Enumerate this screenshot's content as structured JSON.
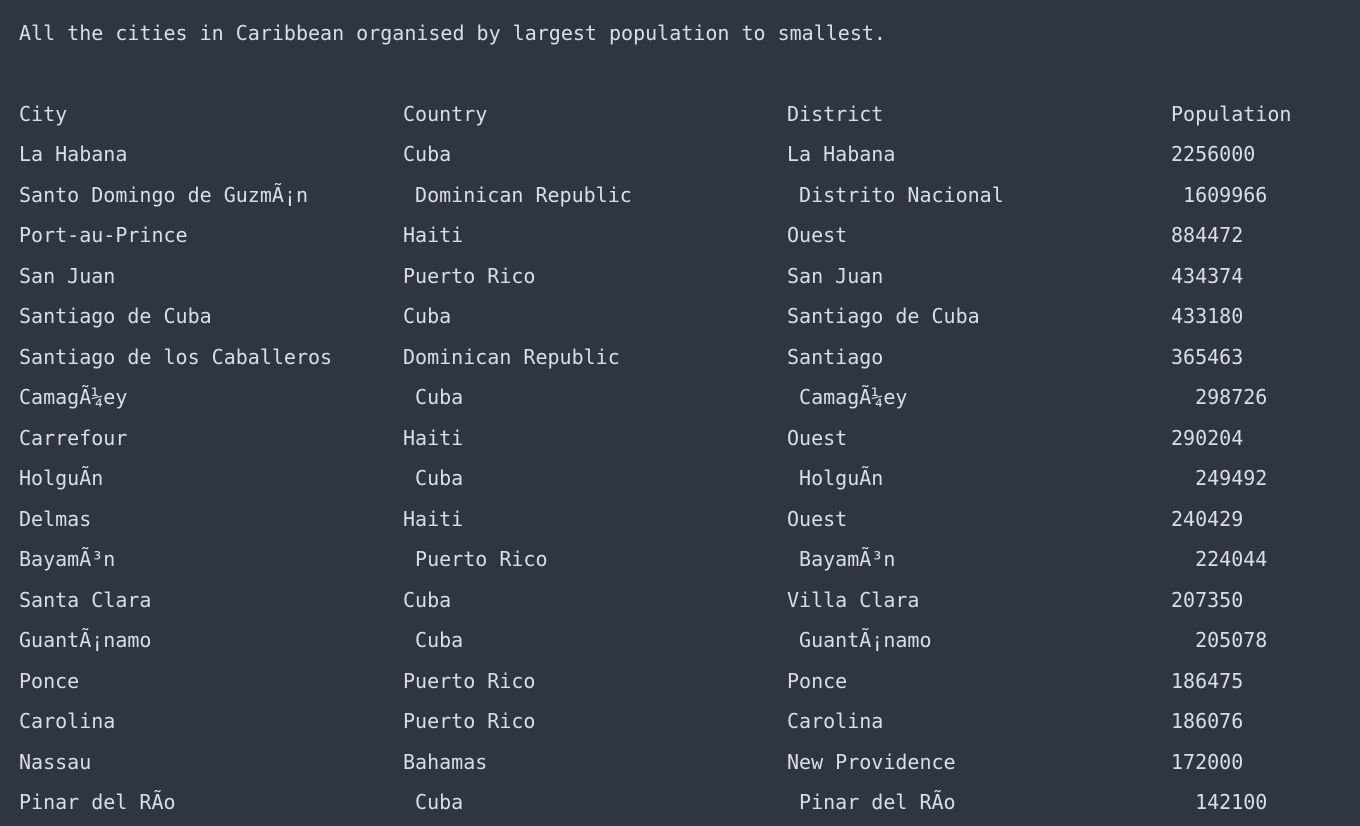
{
  "output": {
    "title": "All the cities in Caribbean organised by largest population to smallest."
  },
  "table": {
    "headers": {
      "city": "City",
      "country": "Country",
      "district": "District",
      "population": "Population"
    },
    "rows": [
      {
        "city": "La Habana",
        "country": "Cuba",
        "district": "La Habana",
        "population": "2256000"
      },
      {
        "city": "Santo Domingo de GuzmÃ¡n",
        "country": " Dominican Republic",
        "district": " Distrito Nacional",
        "population": " 1609966"
      },
      {
        "city": "Port-au-Prince",
        "country": "Haiti",
        "district": "Ouest",
        "population": "884472"
      },
      {
        "city": "San Juan",
        "country": "Puerto Rico",
        "district": "San Juan",
        "population": "434374"
      },
      {
        "city": "Santiago de Cuba",
        "country": "Cuba",
        "district": "Santiago de Cuba",
        "population": "433180"
      },
      {
        "city": "Santiago de los Caballeros",
        "country": "Dominican Republic",
        "district": "Santiago",
        "population": "365463"
      },
      {
        "city": "CamagÃ¼ey",
        "country": " Cuba",
        "district": " CamagÃ¼ey",
        "population": "  298726"
      },
      {
        "city": "Carrefour",
        "country": "Haiti",
        "district": "Ouest",
        "population": "290204"
      },
      {
        "city": "HolguÃ­n",
        "country": " Cuba",
        "district": " HolguÃ­n",
        "population": "  249492"
      },
      {
        "city": "Delmas",
        "country": "Haiti",
        "district": "Ouest",
        "population": "240429"
      },
      {
        "city": "BayamÃ³n",
        "country": " Puerto Rico",
        "district": " BayamÃ³n",
        "population": "  224044"
      },
      {
        "city": "Santa Clara",
        "country": "Cuba",
        "district": "Villa Clara",
        "population": "207350"
      },
      {
        "city": "GuantÃ¡namo",
        "country": " Cuba",
        "district": " GuantÃ¡namo",
        "population": "  205078"
      },
      {
        "city": "Ponce",
        "country": "Puerto Rico",
        "district": "Ponce",
        "population": "186475"
      },
      {
        "city": "Carolina",
        "country": "Puerto Rico",
        "district": "Carolina",
        "population": "186076"
      },
      {
        "city": "Nassau",
        "country": "Bahamas",
        "district": "New Providence",
        "population": "172000"
      },
      {
        "city": "Pinar del RÃ­o",
        "country": " Cuba",
        "district": " Pinar del RÃ­o",
        "population": "  142100"
      }
    ]
  }
}
